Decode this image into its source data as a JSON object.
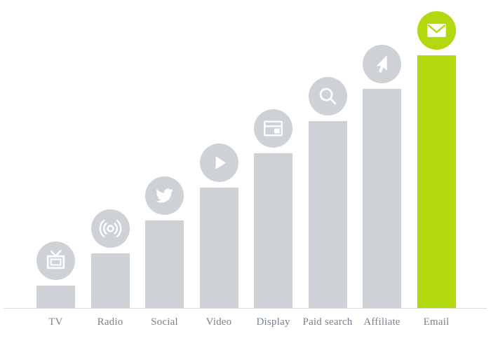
{
  "chart_data": {
    "type": "bar",
    "title": "",
    "xlabel": "",
    "ylabel": "",
    "categories": [
      "TV",
      "Radio",
      "Social",
      "Video",
      "Display",
      "Paid search",
      "Affiliate",
      "Email"
    ],
    "values": [
      32,
      78,
      125,
      172,
      221,
      267,
      313,
      361
    ],
    "units": "relative bar heights in px (no value axis shown in image)",
    "highlight_category": "Email",
    "icons": [
      "tv-icon",
      "radio-broadcast-icon",
      "twitter-bird-icon",
      "play-icon",
      "browser-window-icon",
      "magnifier-icon",
      "cursor-arrow-icon",
      "envelope-icon"
    ],
    "legend": "none",
    "grid": false,
    "axis": {
      "baseline": true
    },
    "colors": {
      "bar": "#ced2d6",
      "highlight": "#b2d80e",
      "icon_glyph": "#ffffff",
      "axis_line": "#dadcde",
      "label_text": "#76828f",
      "background": "#ffffff"
    }
  }
}
